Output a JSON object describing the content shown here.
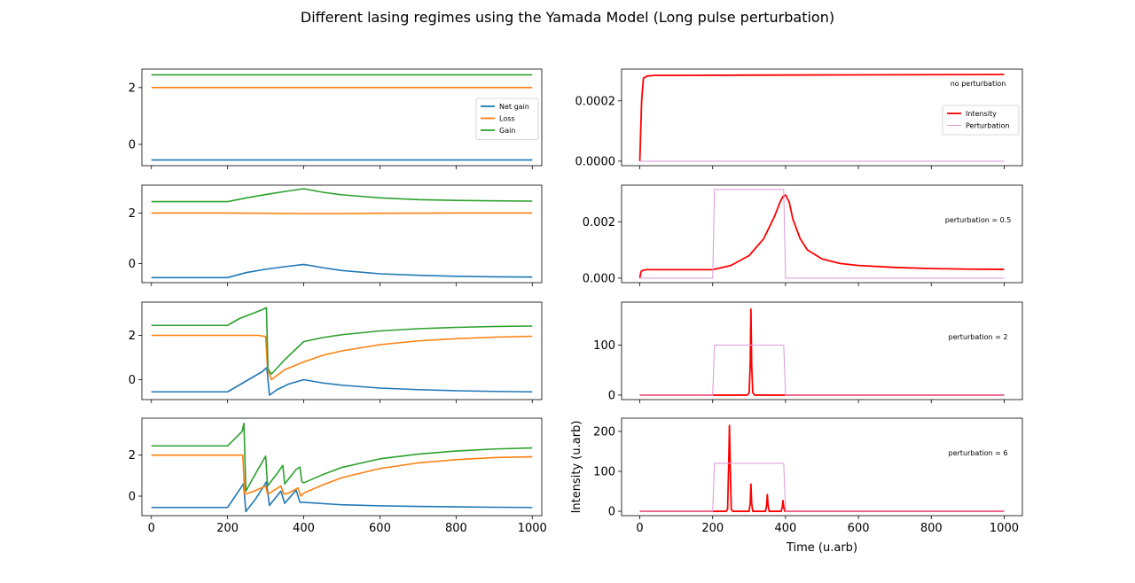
{
  "title": "Different lasing regimes using the Yamada Model (Long pulse perturbation)",
  "colors": {
    "net_gain": "#1f77b4",
    "loss": "#ff7f0e",
    "gain": "#2ca02c",
    "intensity": "#ff0000",
    "perturbation": "#dda0dd"
  },
  "chart_data": [
    {
      "type": "line",
      "row": 0,
      "col": "left",
      "xlim": [
        -25,
        1025
      ],
      "ylim": [
        -0.75,
        2.65
      ],
      "yticks": [
        0,
        2
      ],
      "ytick_labels": [
        "0",
        "2"
      ],
      "xticks": [
        0,
        200,
        400,
        600,
        800,
        1000
      ],
      "legend": "center-right",
      "legend_entries": [
        "Net gain",
        "Loss",
        "Gain"
      ],
      "series": [
        {
          "name": "Net gain",
          "key": "net_gain",
          "x": [
            0,
            1000
          ],
          "y": [
            -0.55,
            -0.55
          ]
        },
        {
          "name": "Loss",
          "key": "loss",
          "x": [
            0,
            1000
          ],
          "y": [
            2.0,
            2.0
          ]
        },
        {
          "name": "Gain",
          "key": "gain",
          "x": [
            0,
            1000
          ],
          "y": [
            2.45,
            2.45
          ]
        }
      ]
    },
    {
      "type": "line",
      "row": 1,
      "col": "left",
      "xlim": [
        -25,
        1025
      ],
      "ylim": [
        -0.75,
        3.1
      ],
      "yticks": [
        0,
        2
      ],
      "ytick_labels": [
        "0",
        "2"
      ],
      "xticks": [
        0,
        200,
        400,
        600,
        800,
        1000
      ],
      "series": [
        {
          "key": "net_gain",
          "x": [
            0,
            200,
            250,
            300,
            350,
            400,
            450,
            500,
            600,
            700,
            800,
            900,
            1000
          ],
          "y": [
            -0.55,
            -0.55,
            -0.35,
            -0.22,
            -0.12,
            -0.03,
            -0.16,
            -0.27,
            -0.4,
            -0.46,
            -0.5,
            -0.52,
            -0.53
          ]
        },
        {
          "key": "loss",
          "x": [
            0,
            200,
            400,
            500,
            600,
            800,
            1000
          ],
          "y": [
            2.0,
            2.0,
            1.98,
            1.98,
            1.99,
            2.0,
            2.0
          ]
        },
        {
          "key": "gain",
          "x": [
            0,
            200,
            250,
            300,
            350,
            400,
            450,
            500,
            600,
            700,
            800,
            900,
            1000
          ],
          "y": [
            2.45,
            2.45,
            2.6,
            2.73,
            2.85,
            2.96,
            2.82,
            2.72,
            2.6,
            2.53,
            2.5,
            2.48,
            2.47
          ]
        }
      ]
    },
    {
      "type": "line",
      "row": 2,
      "col": "left",
      "xlim": [
        -25,
        1025
      ],
      "ylim": [
        -0.9,
        3.5
      ],
      "yticks": [
        0,
        2
      ],
      "ytick_labels": [
        "0",
        "2"
      ],
      "xticks": [
        0,
        200,
        400,
        600,
        800,
        1000
      ],
      "series": [
        {
          "key": "net_gain",
          "x": [
            0,
            200,
            230,
            260,
            290,
            303,
            310,
            330,
            360,
            400,
            450,
            500,
            600,
            700,
            800,
            900,
            1000
          ],
          "y": [
            -0.55,
            -0.55,
            -0.25,
            0.05,
            0.35,
            0.55,
            -0.7,
            -0.45,
            -0.2,
            0.0,
            -0.15,
            -0.25,
            -0.38,
            -0.45,
            -0.5,
            -0.53,
            -0.55
          ]
        },
        {
          "key": "loss",
          "x": [
            0,
            200,
            280,
            300,
            305,
            315,
            350,
            400,
            450,
            500,
            600,
            700,
            800,
            900,
            1000
          ],
          "y": [
            2.0,
            2.0,
            2.0,
            1.95,
            0.5,
            0.0,
            0.45,
            0.8,
            1.1,
            1.3,
            1.58,
            1.75,
            1.85,
            1.92,
            1.96
          ]
        },
        {
          "key": "gain",
          "x": [
            0,
            200,
            230,
            260,
            290,
            302,
            306,
            315,
            350,
            400,
            450,
            500,
            600,
            700,
            800,
            900,
            1000
          ],
          "y": [
            2.45,
            2.45,
            2.75,
            2.95,
            3.15,
            3.25,
            0.5,
            0.25,
            0.9,
            1.72,
            1.9,
            2.03,
            2.2,
            2.3,
            2.36,
            2.4,
            2.42
          ]
        }
      ]
    },
    {
      "type": "line",
      "row": 3,
      "col": "left",
      "xlim": [
        -25,
        1025
      ],
      "ylim": [
        -0.95,
        3.8
      ],
      "yticks": [
        0,
        2
      ],
      "ytick_labels": [
        "0",
        "2"
      ],
      "xticks": [
        0,
        200,
        400,
        600,
        800,
        1000
      ],
      "xtick_labels": [
        "0",
        "200",
        "400",
        "600",
        "800",
        "1000"
      ],
      "series": [
        {
          "key": "net_gain",
          "x": [
            0,
            200,
            242,
            248,
            275,
            302,
            310,
            340,
            350,
            380,
            390,
            400,
            500,
            600,
            700,
            800,
            900,
            1000
          ],
          "y": [
            -0.55,
            -0.55,
            0.6,
            -0.75,
            -0.1,
            0.7,
            -0.45,
            0.25,
            -0.35,
            0.3,
            -0.3,
            -0.3,
            -0.42,
            -0.47,
            -0.5,
            -0.52,
            -0.54,
            -0.55
          ]
        },
        {
          "key": "loss",
          "x": [
            0,
            200,
            240,
            245,
            255,
            270,
            300,
            305,
            315,
            340,
            348,
            360,
            385,
            392,
            400,
            450,
            500,
            600,
            700,
            800,
            900,
            1000
          ],
          "y": [
            2.0,
            2.0,
            2.0,
            0.1,
            0.15,
            0.25,
            0.5,
            0.1,
            0.2,
            0.5,
            0.1,
            0.15,
            0.4,
            0.0,
            0.15,
            0.55,
            0.9,
            1.35,
            1.62,
            1.78,
            1.88,
            1.92
          ]
        },
        {
          "key": "gain",
          "x": [
            0,
            200,
            238,
            243,
            248,
            275,
            300,
            305,
            330,
            345,
            350,
            380,
            390,
            395,
            400,
            450,
            500,
            600,
            700,
            800,
            900,
            1000
          ],
          "y": [
            2.45,
            2.45,
            3.15,
            3.55,
            0.25,
            1.15,
            1.95,
            0.5,
            1.1,
            1.5,
            0.6,
            1.3,
            1.42,
            0.7,
            0.65,
            1.05,
            1.4,
            1.82,
            2.05,
            2.2,
            2.3,
            2.35
          ]
        }
      ]
    },
    {
      "type": "line",
      "row": 0,
      "col": "right",
      "xlim": [
        -50,
        1050
      ],
      "ylim": [
        -1.5e-05,
        0.000305
      ],
      "yticks": [
        0,
        0.0002
      ],
      "ytick_labels": [
        "0.0000",
        "0.0002"
      ],
      "xticks": [
        0,
        200,
        400,
        600,
        800,
        1000
      ],
      "annotation": "no perturbation",
      "legend": "center-right",
      "legend_entries": [
        "Intensity",
        "Perturbation"
      ],
      "series": [
        {
          "name": "Intensity",
          "key": "intensity",
          "x": [
            0,
            5,
            10,
            20,
            40,
            100,
            300,
            600,
            1000
          ],
          "y": [
            0.0,
            0.0002,
            0.000275,
            0.000282,
            0.000284,
            0.000284,
            0.000285,
            0.000286,
            0.000287
          ]
        },
        {
          "name": "Perturbation",
          "key": "perturbation",
          "x": [
            0,
            1000
          ],
          "y": [
            0,
            0
          ]
        }
      ]
    },
    {
      "type": "line",
      "row": 1,
      "col": "right",
      "xlim": [
        -50,
        1050
      ],
      "ylim": [
        -0.00016,
        0.0033
      ],
      "yticks": [
        0,
        0.002
      ],
      "ytick_labels": [
        "0.000",
        "0.002"
      ],
      "xticks": [
        0,
        200,
        400,
        600,
        800,
        1000
      ],
      "annotation": "perturbation = 0.5",
      "series": [
        {
          "key": "intensity",
          "x": [
            0,
            3,
            8,
            20,
            200,
            250,
            300,
            340,
            370,
            385,
            393,
            400,
            410,
            420,
            440,
            460,
            500,
            550,
            600,
            700,
            800,
            900,
            1000
          ],
          "y": [
            0.0,
            0.00022,
            0.00028,
            0.0003,
            0.0003,
            0.00045,
            0.0008,
            0.0014,
            0.0022,
            0.0027,
            0.0029,
            0.00295,
            0.0027,
            0.0021,
            0.0014,
            0.001,
            0.00068,
            0.00052,
            0.00045,
            0.00038,
            0.00034,
            0.00032,
            0.00031
          ]
        },
        {
          "key": "perturbation",
          "x": [
            0,
            200,
            205,
            395,
            400,
            1000
          ],
          "y": [
            0,
            0,
            0.00315,
            0.00315,
            0,
            0
          ]
        }
      ]
    },
    {
      "type": "line",
      "row": 2,
      "col": "right",
      "xlim": [
        -50,
        1050
      ],
      "ylim": [
        -9,
        186
      ],
      "yticks": [
        0,
        100
      ],
      "ytick_labels": [
        "0",
        "100"
      ],
      "xticks": [
        0,
        200,
        400,
        600,
        800,
        1000
      ],
      "annotation": "perturbation = 2",
      "series": [
        {
          "key": "intensity",
          "x": [
            0,
            295,
            300,
            303,
            305,
            307,
            310,
            315,
            1000
          ],
          "y": [
            0,
            0,
            5,
            60,
            172,
            60,
            5,
            0,
            0
          ]
        },
        {
          "key": "perturbation",
          "x": [
            0,
            200,
            205,
            395,
            400,
            1000
          ],
          "y": [
            0,
            0,
            100,
            100,
            0,
            0
          ]
        }
      ]
    },
    {
      "type": "line",
      "row": 3,
      "col": "right",
      "xlim": [
        -50,
        1050
      ],
      "ylim": [
        -11,
        233
      ],
      "yticks": [
        0,
        100,
        200
      ],
      "ytick_labels": [
        "0",
        "100",
        "200"
      ],
      "xticks": [
        0,
        200,
        400,
        600,
        800,
        1000
      ],
      "xtick_labels": [
        "0",
        "200",
        "400",
        "600",
        "800",
        "1000"
      ],
      "xlabel": "Time (u.arb)",
      "ylabel": "Intensity (u.arb)",
      "annotation": "perturbation = 6",
      "series": [
        {
          "key": "intensity",
          "x": [
            0,
            237,
            241,
            244,
            246,
            248,
            251,
            255,
            300,
            303,
            305,
            307,
            310,
            345,
            348,
            350,
            352,
            355,
            388,
            391,
            393,
            395,
            398,
            1000
          ],
          "y": [
            0,
            0,
            5,
            120,
            215,
            120,
            5,
            0,
            0,
            20,
            68,
            20,
            0,
            0,
            15,
            42,
            15,
            0,
            0,
            10,
            27,
            10,
            0,
            0
          ]
        },
        {
          "key": "perturbation",
          "x": [
            0,
            200,
            205,
            395,
            400,
            1000
          ],
          "y": [
            0,
            0,
            120,
            120,
            0,
            0
          ]
        }
      ]
    }
  ]
}
